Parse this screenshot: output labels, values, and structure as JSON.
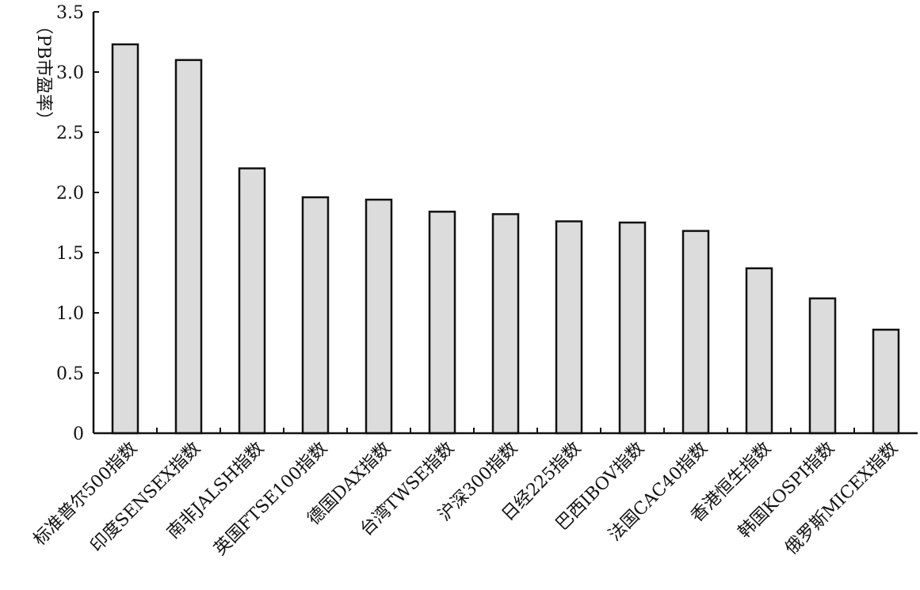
{
  "chart_data": {
    "type": "bar",
    "title": "",
    "xlabel": "",
    "ylabel": "（PB市盈率）",
    "ylim": [
      0,
      3.5
    ],
    "yticks": [
      {
        "value": 0,
        "label": "0"
      },
      {
        "value": 0.5,
        "label": "0.5"
      },
      {
        "value": 1.0,
        "label": "1.0"
      },
      {
        "value": 1.5,
        "label": "1.5"
      },
      {
        "value": 2.0,
        "label": "2.0"
      },
      {
        "value": 2.5,
        "label": "2.5"
      },
      {
        "value": 3.0,
        "label": "3.0"
      },
      {
        "value": 3.5,
        "label": "3.5"
      }
    ],
    "categories": [
      "标准普尔500指数",
      "印度SENSEX指数",
      "南非JALSH指数",
      "英国FTSE100指数",
      "德国DAX指数",
      "台湾TWSE指数",
      "沪深300指数",
      "日经225指数",
      "巴西IBOV指数",
      "法国CAC40指数",
      "香港恒生指数",
      "韩国KOSPI指数",
      "俄罗斯MICEX指数"
    ],
    "values": [
      3.23,
      3.1,
      2.2,
      1.96,
      1.94,
      1.84,
      1.82,
      1.76,
      1.75,
      1.68,
      1.37,
      1.12,
      0.86
    ],
    "grid": false,
    "legend": "none",
    "bar_color": "#dcdcdc",
    "bar_edge_color": "#111111"
  }
}
